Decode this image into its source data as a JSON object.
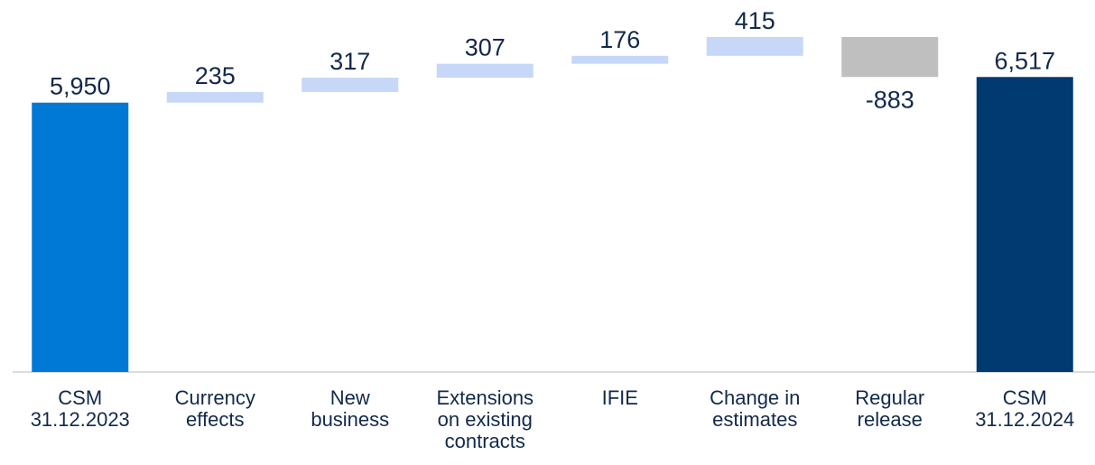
{
  "chart_data": {
    "type": "waterfall",
    "categories": [
      "CSM\n31.12.2023",
      "Currency\neffects",
      "New\nbusiness",
      "Extensions\non existing\ncontracts",
      "IFIE",
      "Change in\nestimates",
      "Regular\nrelease",
      "CSM\n31.12.2024"
    ],
    "values": [
      5950,
      235,
      317,
      307,
      176,
      415,
      -883,
      6517
    ],
    "value_labels": [
      "5,950",
      "235",
      "317",
      "307",
      "176",
      "415",
      "-883",
      "6,517"
    ],
    "totals": [
      true,
      false,
      false,
      false,
      false,
      false,
      false,
      true
    ],
    "colors": [
      "#0078d6",
      "#c6d7f8",
      "#c6d7f8",
      "#c6d7f8",
      "#c6d7f8",
      "#c6d7f8",
      "#bfbfbf",
      "#003a70"
    ]
  }
}
